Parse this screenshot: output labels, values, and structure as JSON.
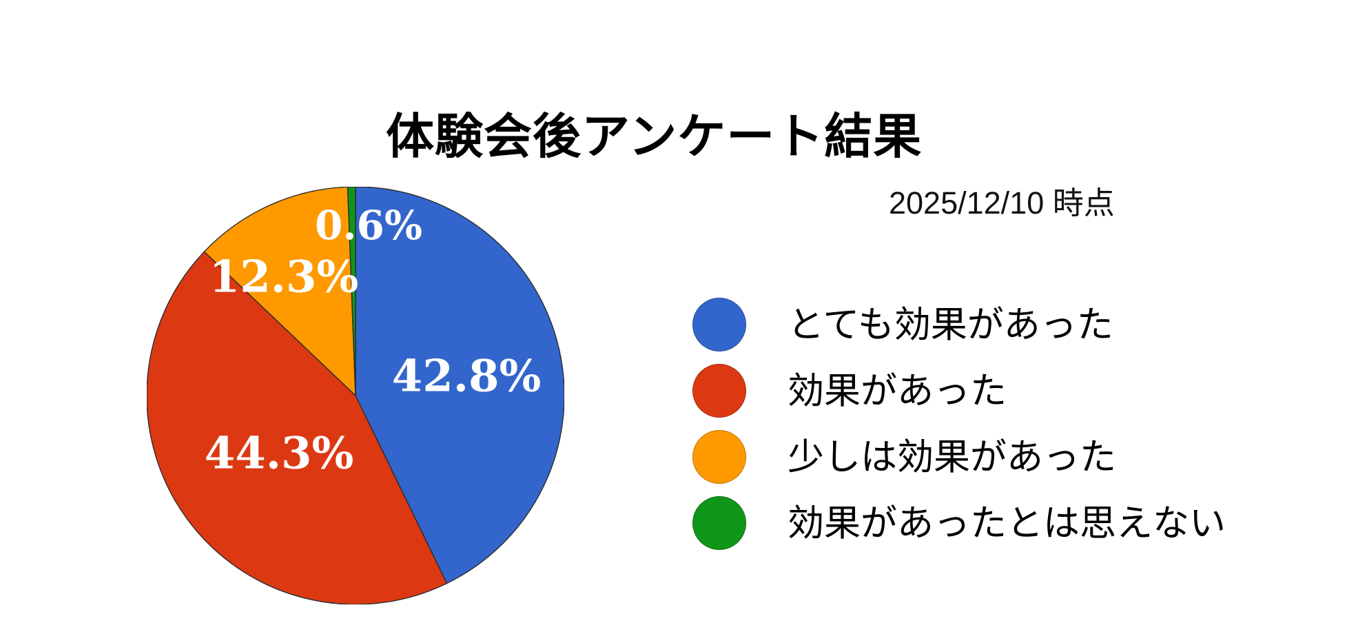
{
  "header": {
    "title": "体験会後アンケート結果",
    "date": "2025/12/10 時点"
  },
  "chart_data": {
    "type": "pie",
    "title": "体験会後アンケート結果",
    "subtitle": "2025/12/10 時点",
    "legend_position": "right",
    "start_angle": "12-oclock-clockwise",
    "total": 100.0,
    "labels": [
      "とても効果があった",
      "効果があった",
      "少しは効果があった",
      "効果があったとは思えない"
    ],
    "values": [
      42.8,
      44.3,
      12.3,
      0.6
    ],
    "display_values": [
      "42.8%",
      "44.3%",
      "12.3%",
      "0.6%"
    ],
    "colors": [
      "#3366CC",
      "#DC3912",
      "#FF9900",
      "#109618"
    ],
    "slice_label_color": "#FFFFFF",
    "slice_border_color": "#2b2b2b"
  }
}
